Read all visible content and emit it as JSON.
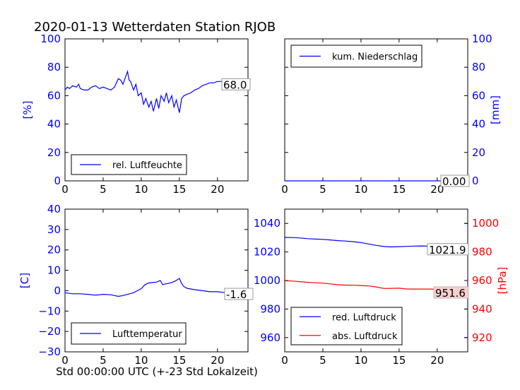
{
  "title": "2020-01-13 Wetterdaten Station RJOB",
  "xlabel": "Std 00:00:00 UTC (+-23 Std Lokalzeit)",
  "chart_data": [
    {
      "id": "humidity",
      "type": "line",
      "ylabel": "[%]",
      "xlim": [
        0,
        24
      ],
      "ylim": [
        0,
        100
      ],
      "xticks": [
        0,
        5,
        10,
        15,
        20
      ],
      "yticks": [
        0,
        20,
        40,
        60,
        80,
        100
      ],
      "legend": "lower-left",
      "series": [
        {
          "name": "rel. Luftfeuchte",
          "color": "#0000ff",
          "x": [
            0,
            0.3,
            0.6,
            1,
            1.5,
            1.8,
            2,
            2.5,
            3,
            3.5,
            4,
            4.5,
            5,
            5.5,
            6,
            6.5,
            7,
            7.3,
            7.6,
            8,
            8.2,
            8.4,
            8.6,
            9,
            9.3,
            9.6,
            10,
            10.3,
            10.6,
            11,
            11.3,
            11.6,
            12,
            12.3,
            12.6,
            13,
            13.3,
            13.6,
            14,
            14.3,
            14.6,
            15,
            15.3,
            15.6,
            16,
            16.5,
            17,
            17.5,
            18,
            18.5,
            19,
            19.5,
            20,
            20.5,
            21,
            21.5,
            22,
            22.5,
            23,
            23.5,
            24
          ],
          "y": [
            64,
            66,
            65,
            67,
            66,
            68,
            65,
            64,
            64,
            66,
            67,
            65,
            66,
            65,
            64,
            66,
            72,
            71,
            68,
            74,
            77,
            71,
            70,
            64,
            68,
            60,
            62,
            54,
            58,
            52,
            56,
            49,
            58,
            51,
            60,
            56,
            62,
            55,
            60,
            52,
            57,
            48,
            58,
            60,
            61,
            62,
            64,
            65,
            67,
            68,
            69,
            69,
            70,
            70,
            70,
            69,
            70,
            69,
            68,
            67,
            68
          ]
        }
      ],
      "annotation": "68.0"
    },
    {
      "id": "precipitation",
      "type": "line",
      "ylabel": "[mm]",
      "xlim": [
        0,
        24
      ],
      "ylim": [
        0,
        100
      ],
      "xticks": [
        0,
        5,
        10,
        15,
        20
      ],
      "yticks": [
        0,
        20,
        40,
        60,
        80,
        100
      ],
      "legend": "top-left",
      "series": [
        {
          "name": "kum. Niederschlag",
          "color": "#0000ff",
          "x": [
            0,
            24
          ],
          "y": [
            0,
            0
          ]
        }
      ],
      "annotation": "0.00"
    },
    {
      "id": "temperature",
      "type": "line",
      "ylabel": "[C]",
      "xlim": [
        0,
        24
      ],
      "ylim": [
        -30,
        40
      ],
      "xticks": [
        0,
        5,
        10,
        15,
        20
      ],
      "yticks": [
        -30,
        -20,
        -10,
        0,
        10,
        20,
        30,
        40
      ],
      "legend": "lower-left",
      "series": [
        {
          "name": "Lufttemperatur",
          "color": "#0000ff",
          "x": [
            0,
            1,
            2,
            3,
            4,
            5,
            6,
            7,
            7.5,
            8,
            8.5,
            9,
            9.5,
            10,
            10.5,
            11,
            11.5,
            12,
            12.5,
            12.8,
            13,
            13.5,
            14,
            14.5,
            15,
            15.3,
            15.6,
            16,
            17,
            18,
            19,
            20,
            21,
            22,
            23,
            24
          ],
          "y": [
            -1,
            -1.5,
            -1.5,
            -1.8,
            -2.2,
            -1.8,
            -2,
            -2.8,
            -2.5,
            -2,
            -1.5,
            -1,
            0,
            1,
            3,
            3.8,
            4,
            4.2,
            5,
            3,
            3.2,
            3.5,
            4,
            4.8,
            6,
            3.5,
            2,
            1.2,
            0.5,
            0,
            -0.5,
            -0.5,
            -1,
            -1.2,
            -1.5,
            -1.6
          ]
        }
      ],
      "annotation": "-1.6"
    },
    {
      "id": "pressure",
      "type": "line",
      "xlim": [
        0,
        24
      ],
      "ylim_left": [
        950,
        1050
      ],
      "ylim_right": [
        910,
        1010
      ],
      "ylabel_right": "[hPa]",
      "xticks": [
        0,
        5,
        10,
        15,
        20
      ],
      "yticks_left": [
        960,
        980,
        1000,
        1020,
        1040
      ],
      "yticks_right": [
        920,
        940,
        960,
        980,
        1000
      ],
      "legend": "lower-left",
      "series": [
        {
          "name": "red. Luftdruck",
          "color": "#0000ff",
          "axis": "left",
          "x": [
            0,
            1,
            2,
            3,
            4,
            5,
            6,
            7,
            8,
            9,
            10,
            11,
            12,
            13,
            14,
            15,
            16,
            17,
            18,
            19,
            20,
            21,
            22,
            23,
            24
          ],
          "y": [
            1030.2,
            1030.1,
            1029.8,
            1029.3,
            1029.0,
            1028.8,
            1028.4,
            1027.9,
            1027.6,
            1027.2,
            1026.6,
            1025.6,
            1024.6,
            1023.8,
            1023.5,
            1023.7,
            1023.9,
            1024.1,
            1024.2,
            1024.0,
            1023.6,
            1023.2,
            1022.8,
            1022.3,
            1021.9
          ]
        },
        {
          "name": "abs. Luftdruck",
          "color": "#ff0000",
          "axis": "right",
          "x": [
            0,
            1,
            2,
            3,
            4,
            5,
            6,
            7,
            8,
            9,
            10,
            11,
            12,
            13,
            14,
            15,
            16,
            17,
            18,
            19,
            20,
            21,
            22,
            23,
            24
          ],
          "y": [
            959.8,
            959.6,
            959.2,
            958.7,
            958.4,
            958.1,
            957.6,
            957.0,
            956.8,
            956.7,
            956.5,
            956.2,
            955.5,
            954.4,
            954.5,
            954.6,
            954.0,
            954.0,
            954.0,
            954.0,
            953.8,
            953.4,
            952.8,
            952.1,
            951.6
          ]
        }
      ],
      "annotations": [
        "1021.9",
        "951.6"
      ]
    }
  ]
}
